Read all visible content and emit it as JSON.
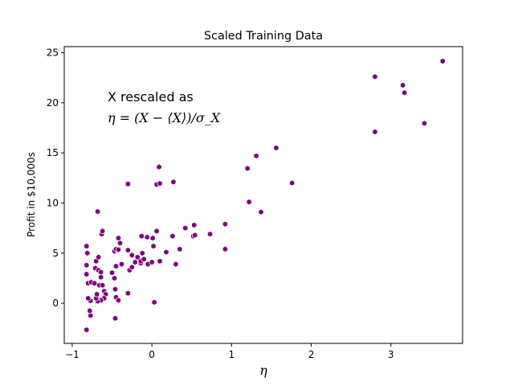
{
  "chart_data": {
    "type": "scatter",
    "title": "Scaled Training Data",
    "xlabel": "η",
    "ylabel": "Profit in $10,000s",
    "xlim": [
      -1.1,
      3.9
    ],
    "ylim": [
      -4.0,
      25.6
    ],
    "xticks": [
      -1,
      0,
      1,
      2,
      3
    ],
    "yticks": [
      0,
      5,
      10,
      15,
      20,
      25
    ],
    "grid": false,
    "marker_color": "#800080",
    "annotation": {
      "line1": "X rescaled as",
      "line2": "η = (X − ⟨X⟩)/σ_X"
    },
    "points": [
      [
        -0.82,
        -2.65
      ],
      [
        -0.77,
        -1.22
      ],
      [
        -0.78,
        -0.75
      ],
      [
        -0.77,
        0.25
      ],
      [
        -0.8,
        0.5
      ],
      [
        -0.8,
        2.0
      ],
      [
        -0.76,
        2.1
      ],
      [
        -0.72,
        2.0
      ],
      [
        -0.82,
        2.9
      ],
      [
        -0.82,
        3.8
      ],
      [
        -0.81,
        5.0
      ],
      [
        -0.82,
        5.7
      ],
      [
        -0.71,
        3.5
      ],
      [
        -0.7,
        4.2
      ],
      [
        -0.67,
        4.6
      ],
      [
        -0.67,
        3.3
      ],
      [
        -0.64,
        3.1
      ],
      [
        -0.66,
        1.8
      ],
      [
        -0.62,
        1.8
      ],
      [
        -0.6,
        1.2
      ],
      [
        -0.58,
        0.9
      ],
      [
        -0.6,
        0.5
      ],
      [
        -0.64,
        0.3
      ],
      [
        -0.68,
        0.2
      ],
      [
        -0.7,
        0.5
      ],
      [
        -0.69,
        0.9
      ],
      [
        -0.64,
        2.6
      ],
      [
        -0.63,
        6.9
      ],
      [
        -0.62,
        7.2
      ],
      [
        -0.68,
        9.15
      ],
      [
        -0.5,
        3.05
      ],
      [
        -0.47,
        2.5
      ],
      [
        -0.46,
        1.4
      ],
      [
        -0.45,
        0.6
      ],
      [
        -0.46,
        -1.5
      ],
      [
        -0.42,
        0.3
      ],
      [
        -0.47,
        5.2
      ],
      [
        -0.45,
        5.4
      ],
      [
        -0.42,
        5.35
      ],
      [
        -0.4,
        6.0
      ],
      [
        -0.42,
        6.5
      ],
      [
        -0.45,
        3.7
      ],
      [
        -0.38,
        3.9
      ],
      [
        -0.3,
        5.3
      ],
      [
        -0.25,
        4.8
      ],
      [
        -0.28,
        3.3
      ],
      [
        -0.25,
        3.6
      ],
      [
        -0.21,
        4.1
      ],
      [
        -0.18,
        4.6
      ],
      [
        -0.14,
        4.0
      ],
      [
        -0.14,
        4.2
      ],
      [
        -0.12,
        5.0
      ],
      [
        -0.13,
        6.7
      ],
      [
        -0.1,
        4.4
      ],
      [
        -0.06,
        6.6
      ],
      [
        -0.05,
        3.9
      ],
      [
        -0.3,
        1.0
      ],
      [
        -0.3,
        11.9
      ],
      [
        0.0,
        4.1
      ],
      [
        0.01,
        6.5
      ],
      [
        0.02,
        5.7
      ],
      [
        0.06,
        7.2
      ],
      [
        0.03,
        0.1
      ],
      [
        0.06,
        11.85
      ],
      [
        0.1,
        11.95
      ],
      [
        0.09,
        13.6
      ],
      [
        0.1,
        4.2
      ],
      [
        0.18,
        5.1
      ],
      [
        0.26,
        6.7
      ],
      [
        0.27,
        12.1
      ],
      [
        0.3,
        3.9
      ],
      [
        0.35,
        5.4
      ],
      [
        0.42,
        7.5
      ],
      [
        0.52,
        6.7
      ],
      [
        0.54,
        6.8
      ],
      [
        0.53,
        7.8
      ],
      [
        0.73,
        6.9
      ],
      [
        0.92,
        5.4
      ],
      [
        0.92,
        7.9
      ],
      [
        1.2,
        13.45
      ],
      [
        1.22,
        10.1
      ],
      [
        1.31,
        14.7
      ],
      [
        1.37,
        9.1
      ],
      [
        1.56,
        15.5
      ],
      [
        1.76,
        12.0
      ],
      [
        2.8,
        22.6
      ],
      [
        2.8,
        17.1
      ],
      [
        3.15,
        21.75
      ],
      [
        3.17,
        21.0
      ],
      [
        3.42,
        17.95
      ],
      [
        3.65,
        24.15
      ]
    ]
  }
}
